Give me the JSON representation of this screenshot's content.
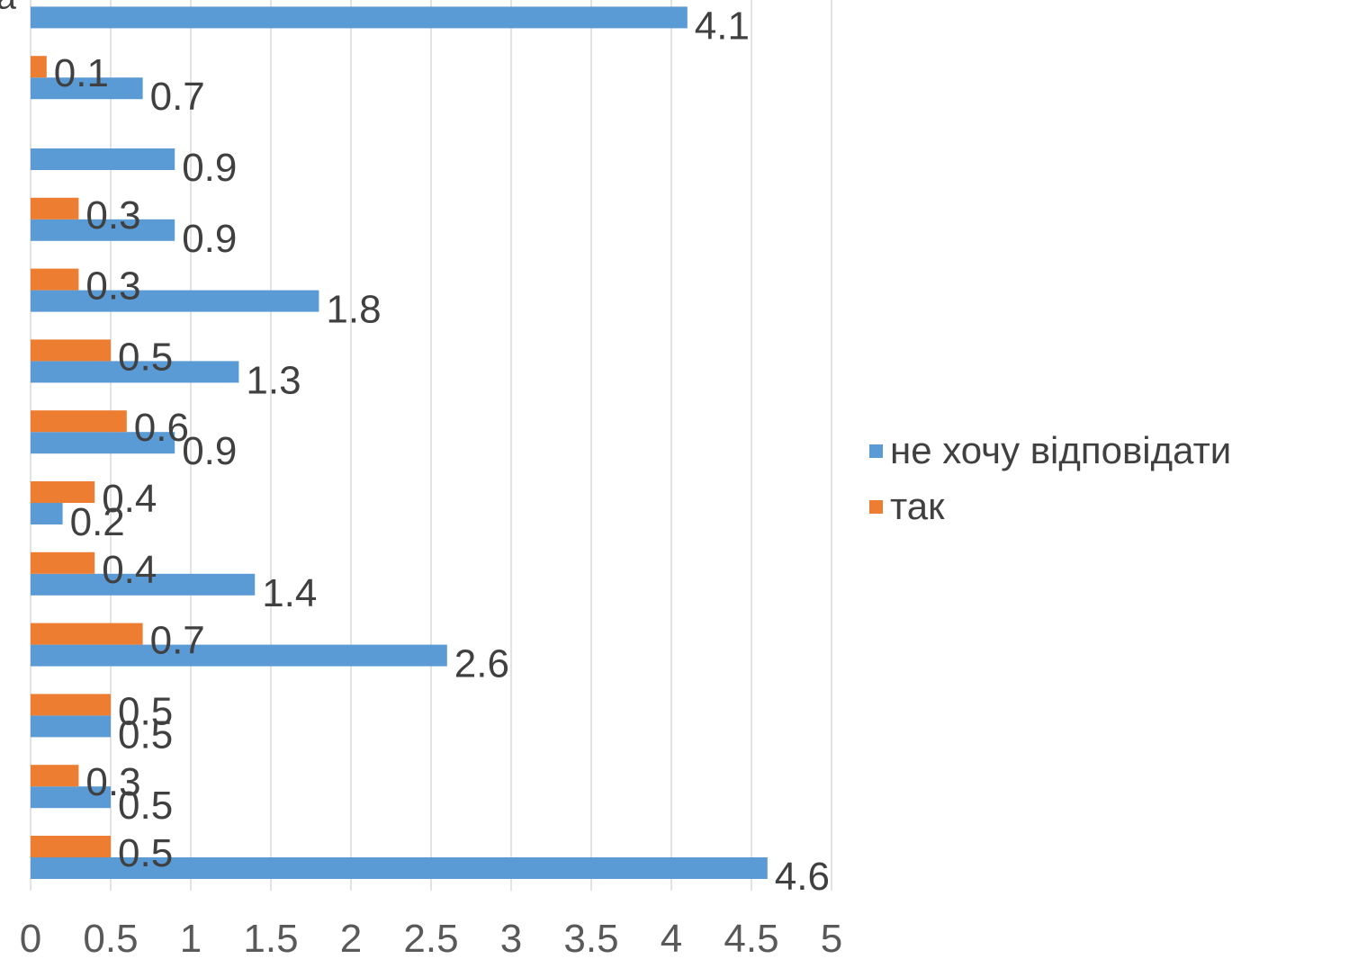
{
  "chart_data": {
    "type": "bar",
    "orientation": "horizontal",
    "categories": [
      "",
      "",
      "",
      "",
      "",
      "",
      "",
      "",
      "",
      "",
      "",
      "",
      "а"
    ],
    "category_order": "bottom-to-top",
    "series": [
      {
        "name": "не хочу відповідати",
        "color": "#5B9BD5",
        "values": [
          4.6,
          0.5,
          0.5,
          2.6,
          1.4,
          0.2,
          0.9,
          1.3,
          1.8,
          0.9,
          0.9,
          0.7,
          4.1
        ]
      },
      {
        "name": "так",
        "color": "#ED7D31",
        "values": [
          0.5,
          0.3,
          0.5,
          0.7,
          0.4,
          0.4,
          0.6,
          0.5,
          0.3,
          0.3,
          null,
          0.1,
          null
        ]
      }
    ],
    "x_ticks": [
      "0",
      "0.5",
      "1",
      "1.5",
      "2",
      "2.5",
      "3",
      "3.5",
      "4",
      "4.5",
      "5"
    ],
    "xlim": [
      0,
      5
    ],
    "grid": "vertical",
    "legend_position": "right",
    "data_labels": true
  }
}
